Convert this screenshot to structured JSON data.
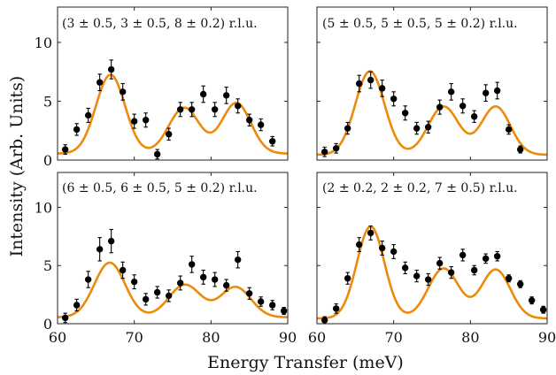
{
  "figure": {
    "xlabel": "Energy Transfer (meV)",
    "ylabel": "Intensity (Arb. Units)"
  },
  "chart_data": [
    {
      "type": "scatter",
      "label": "(3 ± 0.5,  3 ± 0.5,  8 ± 0.2) r.l.u.",
      "xlim": [
        60,
        90
      ],
      "ylim": [
        0,
        13
      ],
      "xticks": [
        60,
        70,
        80,
        90
      ],
      "yticks": [
        0,
        5,
        10
      ],
      "grid": false,
      "points": [
        {
          "x": 61.0,
          "y": 0.9,
          "err": 0.4
        },
        {
          "x": 62.5,
          "y": 2.6,
          "err": 0.5
        },
        {
          "x": 64.0,
          "y": 3.8,
          "err": 0.6
        },
        {
          "x": 65.5,
          "y": 6.6,
          "err": 0.7
        },
        {
          "x": 67.0,
          "y": 7.7,
          "err": 0.8
        },
        {
          "x": 68.5,
          "y": 5.8,
          "err": 0.7
        },
        {
          "x": 70.0,
          "y": 3.3,
          "err": 0.6
        },
        {
          "x": 71.5,
          "y": 3.4,
          "err": 0.6
        },
        {
          "x": 73.0,
          "y": 0.5,
          "err": 0.4
        },
        {
          "x": 74.5,
          "y": 2.2,
          "err": 0.5
        },
        {
          "x": 76.0,
          "y": 4.3,
          "err": 0.6
        },
        {
          "x": 77.5,
          "y": 4.3,
          "err": 0.6
        },
        {
          "x": 79.0,
          "y": 5.6,
          "err": 0.7
        },
        {
          "x": 80.5,
          "y": 4.3,
          "err": 0.6
        },
        {
          "x": 82.0,
          "y": 5.5,
          "err": 0.7
        },
        {
          "x": 83.5,
          "y": 4.6,
          "err": 0.6
        },
        {
          "x": 85.0,
          "y": 3.4,
          "err": 0.5
        },
        {
          "x": 86.5,
          "y": 3.0,
          "err": 0.5
        },
        {
          "x": 88.0,
          "y": 1.6,
          "err": 0.4
        }
      ],
      "fit": {
        "peaks": [
          [
            66.9,
            6.7,
            1.9
          ],
          [
            76.5,
            3.9,
            2.0
          ],
          [
            83.3,
            4.3,
            1.9
          ]
        ],
        "baseline": 0.55
      }
    },
    {
      "type": "scatter",
      "label": "(5 ± 0.5,  5 ± 0.5,  5 ± 0.2) r.l.u.",
      "xlim": [
        60,
        90
      ],
      "ylim": [
        0,
        13
      ],
      "xticks": [
        60,
        70,
        80,
        90
      ],
      "yticks": [
        0,
        5,
        10
      ],
      "grid": false,
      "points": [
        {
          "x": 61.0,
          "y": 0.7,
          "err": 0.4
        },
        {
          "x": 62.5,
          "y": 1.0,
          "err": 0.4
        },
        {
          "x": 64.0,
          "y": 2.7,
          "err": 0.5
        },
        {
          "x": 65.5,
          "y": 6.5,
          "err": 0.7
        },
        {
          "x": 67.0,
          "y": 6.8,
          "err": 0.7
        },
        {
          "x": 68.5,
          "y": 6.1,
          "err": 0.7
        },
        {
          "x": 70.0,
          "y": 5.2,
          "err": 0.6
        },
        {
          "x": 71.5,
          "y": 4.0,
          "err": 0.6
        },
        {
          "x": 73.0,
          "y": 2.7,
          "err": 0.5
        },
        {
          "x": 74.5,
          "y": 2.8,
          "err": 0.5
        },
        {
          "x": 76.0,
          "y": 4.5,
          "err": 0.6
        },
        {
          "x": 77.5,
          "y": 5.8,
          "err": 0.7
        },
        {
          "x": 79.0,
          "y": 4.6,
          "err": 0.6
        },
        {
          "x": 80.5,
          "y": 3.7,
          "err": 0.5
        },
        {
          "x": 82.0,
          "y": 5.7,
          "err": 0.7
        },
        {
          "x": 83.5,
          "y": 5.9,
          "err": 0.7
        },
        {
          "x": 85.0,
          "y": 2.6,
          "err": 0.4
        },
        {
          "x": 86.5,
          "y": 0.9,
          "err": 0.3
        }
      ],
      "fit": {
        "peaks": [
          [
            66.9,
            7.1,
            1.9
          ],
          [
            76.5,
            4.1,
            2.0
          ],
          [
            83.3,
            4.1,
            1.9
          ]
        ],
        "baseline": 0.45
      }
    },
    {
      "type": "scatter",
      "label": "(6 ± 0.5,  6 ± 0.5,  5 ± 0.2) r.l.u.",
      "xlim": [
        60,
        90
      ],
      "ylim": [
        0,
        13
      ],
      "xticks": [
        60,
        70,
        80,
        90
      ],
      "yticks": [
        0,
        5,
        10
      ],
      "grid": false,
      "points": [
        {
          "x": 61.0,
          "y": 0.5,
          "err": 0.4
        },
        {
          "x": 62.5,
          "y": 1.6,
          "err": 0.5
        },
        {
          "x": 64.0,
          "y": 3.8,
          "err": 0.7
        },
        {
          "x": 65.5,
          "y": 6.4,
          "err": 1.0
        },
        {
          "x": 67.0,
          "y": 7.1,
          "err": 1.0
        },
        {
          "x": 68.5,
          "y": 4.6,
          "err": 0.7
        },
        {
          "x": 70.0,
          "y": 3.6,
          "err": 0.6
        },
        {
          "x": 71.5,
          "y": 2.1,
          "err": 0.5
        },
        {
          "x": 73.0,
          "y": 2.7,
          "err": 0.5
        },
        {
          "x": 74.5,
          "y": 2.4,
          "err": 0.5
        },
        {
          "x": 76.0,
          "y": 3.5,
          "err": 0.6
        },
        {
          "x": 77.5,
          "y": 5.1,
          "err": 0.7
        },
        {
          "x": 79.0,
          "y": 4.0,
          "err": 0.6
        },
        {
          "x": 80.5,
          "y": 3.8,
          "err": 0.6
        },
        {
          "x": 82.0,
          "y": 3.3,
          "err": 0.5
        },
        {
          "x": 83.5,
          "y": 5.5,
          "err": 0.7
        },
        {
          "x": 85.0,
          "y": 2.6,
          "err": 0.5
        },
        {
          "x": 86.5,
          "y": 1.9,
          "err": 0.4
        },
        {
          "x": 88.0,
          "y": 1.6,
          "err": 0.4
        },
        {
          "x": 89.5,
          "y": 1.1,
          "err": 0.3
        }
      ],
      "fit": {
        "peaks": [
          [
            66.8,
            4.7,
            2.0
          ],
          [
            76.6,
            2.8,
            2.1
          ],
          [
            83.2,
            2.6,
            2.0
          ]
        ],
        "baseline": 0.55
      }
    },
    {
      "type": "scatter",
      "label": "(2 ± 0.2,  2 ± 0.2,  7 ± 0.5) r.l.u.",
      "xlim": [
        60,
        90
      ],
      "ylim": [
        0,
        13
      ],
      "xticks": [
        60,
        70,
        80,
        90
      ],
      "yticks": [
        0,
        5,
        10
      ],
      "grid": false,
      "points": [
        {
          "x": 61.0,
          "y": 0.3,
          "err": 0.3
        },
        {
          "x": 62.5,
          "y": 1.3,
          "err": 0.4
        },
        {
          "x": 64.0,
          "y": 3.9,
          "err": 0.5
        },
        {
          "x": 65.5,
          "y": 6.8,
          "err": 0.6
        },
        {
          "x": 67.0,
          "y": 7.8,
          "err": 0.6
        },
        {
          "x": 68.5,
          "y": 6.5,
          "err": 0.6
        },
        {
          "x": 70.0,
          "y": 6.2,
          "err": 0.6
        },
        {
          "x": 71.5,
          "y": 4.8,
          "err": 0.5
        },
        {
          "x": 73.0,
          "y": 4.1,
          "err": 0.5
        },
        {
          "x": 74.5,
          "y": 3.8,
          "err": 0.5
        },
        {
          "x": 76.0,
          "y": 5.2,
          "err": 0.5
        },
        {
          "x": 77.5,
          "y": 4.4,
          "err": 0.5
        },
        {
          "x": 79.0,
          "y": 5.9,
          "err": 0.5
        },
        {
          "x": 80.5,
          "y": 4.6,
          "err": 0.4
        },
        {
          "x": 82.0,
          "y": 5.6,
          "err": 0.4
        },
        {
          "x": 83.5,
          "y": 5.8,
          "err": 0.4
        },
        {
          "x": 85.0,
          "y": 3.9,
          "err": 0.3
        },
        {
          "x": 86.5,
          "y": 3.4,
          "err": 0.3
        },
        {
          "x": 88.0,
          "y": 2.0,
          "err": 0.3
        },
        {
          "x": 89.5,
          "y": 1.2,
          "err": 0.3
        }
      ],
      "fit": {
        "peaks": [
          [
            67.0,
            7.9,
            1.8
          ],
          [
            76.5,
            4.3,
            2.0
          ],
          [
            83.3,
            4.2,
            1.9
          ]
        ],
        "baseline": 0.45
      }
    }
  ]
}
